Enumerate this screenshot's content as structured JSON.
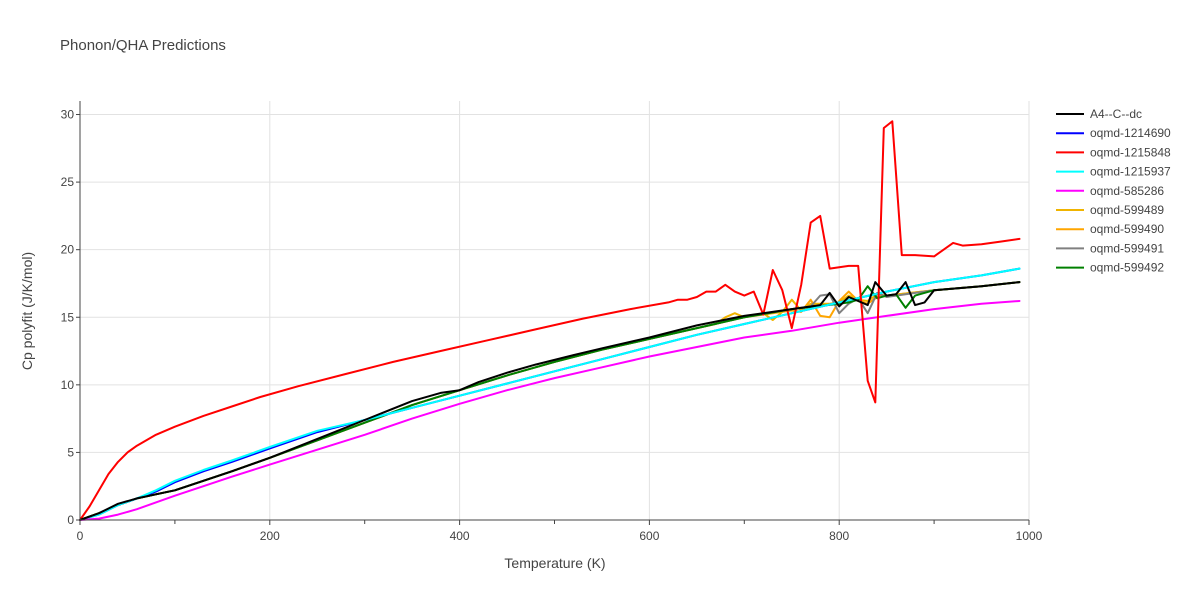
{
  "chart_data": {
    "type": "line",
    "title": "Phonon/QHA Predictions",
    "xlabel": "Temperature (K)",
    "ylabel": "Cp polyfit (J/K/mol)",
    "xlim": [
      0,
      1000
    ],
    "ylim": [
      0,
      31
    ],
    "xticks": [
      0,
      200,
      400,
      600,
      800,
      1000
    ],
    "yticks": [
      0,
      5,
      10,
      15,
      20,
      25,
      30
    ],
    "grid": true,
    "legend_position": "right",
    "series": [
      {
        "name": "A4--C--dc",
        "color": "#000000",
        "x": [
          0,
          20,
          40,
          60,
          80,
          100,
          130,
          160,
          200,
          250,
          300,
          350,
          380,
          400,
          420,
          450,
          480,
          520,
          550,
          600,
          650,
          700,
          750,
          780,
          790,
          800,
          810,
          820,
          830,
          838,
          850,
          860,
          870,
          880,
          890,
          900,
          950,
          990
        ],
        "y": [
          0,
          0.5,
          1.2,
          1.6,
          1.9,
          2.2,
          2.9,
          3.6,
          4.6,
          6.0,
          7.4,
          8.8,
          9.4,
          9.6,
          10.2,
          10.9,
          11.5,
          12.2,
          12.7,
          13.5,
          14.4,
          15.1,
          15.6,
          15.9,
          16.8,
          15.8,
          16.5,
          16.2,
          15.9,
          17.6,
          16.6,
          16.7,
          17.6,
          15.9,
          16.1,
          17.0,
          17.3,
          17.6
        ]
      },
      {
        "name": "oqmd-1214690",
        "color": "#0000ff",
        "x": [
          0,
          20,
          40,
          60,
          80,
          100,
          130,
          160,
          200,
          250,
          300,
          350,
          400,
          450,
          500,
          550,
          600,
          650,
          700,
          750,
          800,
          850,
          900,
          950,
          990
        ],
        "y": [
          0,
          0.4,
          1.1,
          1.6,
          2.1,
          2.8,
          3.6,
          4.3,
          5.3,
          6.5,
          7.4,
          8.3,
          9.2,
          10.1,
          11.0,
          11.9,
          12.8,
          13.7,
          14.5,
          15.3,
          16.1,
          16.9,
          17.6,
          18.1,
          18.6
        ]
      },
      {
        "name": "oqmd-1215848",
        "color": "#ff0000",
        "x": [
          0,
          10,
          20,
          30,
          40,
          50,
          60,
          80,
          100,
          130,
          160,
          190,
          230,
          280,
          330,
          380,
          430,
          480,
          530,
          580,
          620,
          630,
          640,
          650,
          660,
          670,
          680,
          690,
          700,
          710,
          720,
          730,
          740,
          750,
          760,
          770,
          780,
          790,
          800,
          810,
          820,
          830,
          838,
          847,
          856,
          866,
          880,
          900,
          920,
          930,
          950,
          970,
          990
        ],
        "y": [
          0,
          1.0,
          2.2,
          3.4,
          4.3,
          5.0,
          5.5,
          6.3,
          6.9,
          7.7,
          8.4,
          9.1,
          9.9,
          10.8,
          11.7,
          12.5,
          13.3,
          14.1,
          14.9,
          15.6,
          16.1,
          16.3,
          16.3,
          16.5,
          16.9,
          16.9,
          17.4,
          16.9,
          16.6,
          16.9,
          15.2,
          18.5,
          17.0,
          14.2,
          17.4,
          22.0,
          22.5,
          18.6,
          18.7,
          18.8,
          18.8,
          10.3,
          8.7,
          29.0,
          29.5,
          19.6,
          19.6,
          19.5,
          20.5,
          20.3,
          20.4,
          20.6,
          20.8
        ]
      },
      {
        "name": "oqmd-1215937",
        "color": "#00ffff",
        "x": [
          0,
          20,
          40,
          60,
          80,
          100,
          130,
          160,
          200,
          250,
          300,
          350,
          400,
          450,
          500,
          550,
          600,
          650,
          700,
          750,
          800,
          850,
          900,
          950,
          990
        ],
        "y": [
          0,
          0.4,
          1.1,
          1.6,
          2.2,
          2.9,
          3.7,
          4.4,
          5.4,
          6.6,
          7.4,
          8.3,
          9.2,
          10.1,
          11.0,
          11.9,
          12.8,
          13.7,
          14.5,
          15.3,
          16.1,
          16.9,
          17.6,
          18.1,
          18.6
        ]
      },
      {
        "name": "oqmd-585286",
        "color": "#ff00ff",
        "x": [
          0,
          20,
          40,
          60,
          80,
          100,
          130,
          160,
          200,
          250,
          300,
          350,
          400,
          450,
          500,
          550,
          600,
          650,
          700,
          750,
          800,
          850,
          900,
          950,
          990
        ],
        "y": [
          0,
          0.1,
          0.4,
          0.8,
          1.3,
          1.8,
          2.5,
          3.2,
          4.1,
          5.2,
          6.3,
          7.5,
          8.6,
          9.6,
          10.5,
          11.3,
          12.1,
          12.8,
          13.5,
          14.0,
          14.6,
          15.1,
          15.6,
          16.0,
          16.2
        ]
      },
      {
        "name": "oqmd-599489",
        "color": "#f0b400",
        "x": [
          0,
          20,
          40,
          60,
          80,
          100,
          130,
          160,
          200,
          250,
          300,
          350,
          400,
          450,
          500,
          550,
          600,
          650,
          670,
          680,
          690,
          700,
          720,
          730,
          740,
          750,
          760,
          770,
          780,
          790,
          800,
          810,
          820,
          830,
          840,
          850,
          900,
          950,
          990
        ],
        "y": [
          0,
          0.5,
          1.1,
          1.6,
          1.9,
          2.2,
          2.9,
          3.6,
          4.6,
          5.9,
          7.2,
          8.5,
          9.6,
          10.7,
          11.7,
          12.6,
          13.4,
          14.2,
          14.5,
          15.0,
          15.3,
          15.0,
          15.3,
          14.8,
          15.4,
          16.3,
          15.5,
          16.0,
          16.0,
          16.0,
          16.1,
          16.6,
          16.3,
          16.2,
          16.7,
          16.6,
          17.0,
          17.3,
          17.6
        ]
      },
      {
        "name": "oqmd-599490",
        "color": "#ffa500",
        "x": [
          0,
          20,
          40,
          60,
          80,
          100,
          130,
          160,
          200,
          250,
          300,
          350,
          400,
          450,
          500,
          550,
          600,
          650,
          700,
          750,
          760,
          770,
          780,
          790,
          800,
          810,
          820,
          830,
          840,
          850,
          900,
          950,
          990
        ],
        "y": [
          0,
          0.5,
          1.1,
          1.6,
          1.9,
          2.2,
          2.9,
          3.6,
          4.6,
          5.9,
          7.2,
          8.5,
          9.6,
          10.7,
          11.7,
          12.6,
          13.4,
          14.2,
          15.0,
          15.5,
          15.4,
          16.3,
          15.1,
          15.0,
          16.2,
          16.9,
          16.2,
          16.0,
          16.5,
          16.6,
          17.0,
          17.3,
          17.6
        ]
      },
      {
        "name": "oqmd-599491",
        "color": "#808080",
        "x": [
          0,
          20,
          40,
          60,
          80,
          100,
          130,
          160,
          200,
          250,
          300,
          350,
          400,
          450,
          500,
          550,
          600,
          650,
          700,
          750,
          770,
          780,
          790,
          800,
          810,
          820,
          830,
          840,
          850,
          860,
          870,
          900,
          950,
          990
        ],
        "y": [
          0,
          0.5,
          1.1,
          1.6,
          1.9,
          2.2,
          2.9,
          3.6,
          4.6,
          5.9,
          7.2,
          8.5,
          9.6,
          10.7,
          11.7,
          12.6,
          13.4,
          14.2,
          15.0,
          15.6,
          15.8,
          16.6,
          16.7,
          15.3,
          16.0,
          16.4,
          15.3,
          16.8,
          16.5,
          16.6,
          16.7,
          17.0,
          17.3,
          17.6
        ]
      },
      {
        "name": "oqmd-599492",
        "color": "#008000",
        "x": [
          0,
          20,
          40,
          60,
          80,
          100,
          130,
          160,
          200,
          250,
          300,
          350,
          400,
          450,
          500,
          550,
          600,
          650,
          700,
          750,
          800,
          810,
          820,
          830,
          840,
          850,
          860,
          870,
          880,
          900,
          950,
          990
        ],
        "y": [
          0,
          0.5,
          1.1,
          1.6,
          1.9,
          2.2,
          2.9,
          3.6,
          4.6,
          5.9,
          7.2,
          8.5,
          9.6,
          10.7,
          11.7,
          12.6,
          13.4,
          14.2,
          15.0,
          15.6,
          16.0,
          16.1,
          16.3,
          17.3,
          16.4,
          16.6,
          16.7,
          15.7,
          16.6,
          17.0,
          17.3,
          17.6
        ]
      }
    ]
  }
}
